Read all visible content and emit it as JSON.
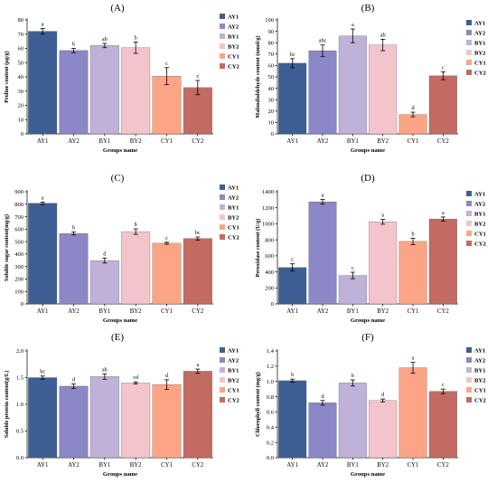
{
  "series_names": [
    "AY1",
    "AY2",
    "BY1",
    "BY2",
    "CY1",
    "CY2"
  ],
  "colors": [
    "#3e5f93",
    "#8c87c6",
    "#c0b1d8",
    "#f4c4cd",
    "#fca586",
    "#c36a63"
  ],
  "chart_data": [
    {
      "type": "bar",
      "title": "(A)",
      "ylabel": "Proline content (µg/g)",
      "xlabel": "Groups name",
      "categories": [
        "AY1",
        "AY2",
        "BY1",
        "BY2",
        "CY1",
        "CY2"
      ],
      "values": [
        72,
        58.5,
        62,
        60.5,
        40.5,
        32.5
      ],
      "errors": [
        2.0,
        1.5,
        1.5,
        4.0,
        6.0,
        5.0
      ],
      "letters": [
        "a",
        "b",
        "ab",
        "b",
        "c",
        "c"
      ],
      "ylim": [
        0,
        80
      ],
      "yticks": [
        "0",
        "10",
        "20",
        "30",
        "40",
        "50",
        "60",
        "70",
        "80"
      ],
      "legend": "right"
    },
    {
      "type": "bar",
      "title": "(B)",
      "ylabel": "Malondialdehyde content (nmol/g)",
      "xlabel": "Groups name",
      "categories": [
        "AY1",
        "AY2",
        "BY1",
        "BY2",
        "CY1",
        "CY2"
      ],
      "values": [
        62,
        73,
        86,
        78,
        17,
        51
      ],
      "errors": [
        4.0,
        5.0,
        6.0,
        5.0,
        2.0,
        3.5
      ],
      "letters": [
        "bc",
        "abc",
        "a",
        "ab",
        "d",
        "c"
      ],
      "ylim": [
        0,
        100
      ],
      "yticks": [
        "0",
        "10",
        "20",
        "30",
        "40",
        "50",
        "60",
        "70",
        "80",
        "90",
        "100"
      ],
      "legend": "right"
    },
    {
      "type": "bar",
      "title": "(C)",
      "ylabel": "Soluble sugar content(mg/g)",
      "xlabel": "Groups name",
      "categories": [
        "AY1",
        "AY2",
        "BY1",
        "BY2",
        "CY1",
        "CY2"
      ],
      "values": [
        808,
        565,
        348,
        580,
        487,
        525
      ],
      "errors": [
        10,
        12,
        20,
        22,
        8,
        12
      ],
      "letters": [
        "a",
        "b",
        "d",
        "b",
        "c",
        "bc"
      ],
      "ylim": [
        0,
        900
      ],
      "yticks": [
        "0",
        "100",
        "200",
        "300",
        "400",
        "500",
        "600",
        "700",
        "800",
        "900"
      ],
      "legend": "right"
    },
    {
      "type": "bar",
      "title": "(D)",
      "ylabel": "Peroxidase content (U/g)",
      "xlabel": "Groups name",
      "categories": [
        "AY1",
        "AY2",
        "BY1",
        "BY2",
        "CY1",
        "CY2"
      ],
      "values": [
        455,
        1275,
        355,
        1025,
        780,
        1060
      ],
      "errors": [
        45,
        30,
        40,
        30,
        40,
        25
      ],
      "letters": [
        "c",
        "a",
        "c",
        "a",
        "b",
        "a"
      ],
      "ylim": [
        0,
        1400
      ],
      "yticks": [
        "0",
        "200",
        "400",
        "600",
        "800",
        "1000",
        "1200",
        "1400"
      ],
      "legend": "right"
    },
    {
      "type": "bar",
      "title": "(E)",
      "ylabel": "Soluble protein content(g/L)",
      "xlabel": "Groups name",
      "categories": [
        "AY1",
        "AY2",
        "BY1",
        "BY2",
        "CY1",
        "CY2"
      ],
      "values": [
        1.5,
        1.34,
        1.52,
        1.4,
        1.37,
        1.62
      ],
      "errors": [
        0.03,
        0.04,
        0.05,
        0.02,
        0.09,
        0.04
      ],
      "letters": [
        "bc",
        "d",
        "ab",
        "cd",
        "d",
        "a"
      ],
      "ylim": [
        0,
        2
      ],
      "yticks": [
        "0.0",
        "0.5",
        "1.0",
        "1.5",
        "2.0"
      ],
      "legend": "right"
    },
    {
      "type": "bar",
      "title": "(F)",
      "ylabel": "Chlorophyll content (mg/g)",
      "xlabel": "Groups name",
      "categories": [
        "AY1",
        "AY2",
        "BY1",
        "BY2",
        "CY1",
        "CY2"
      ],
      "values": [
        1.01,
        0.72,
        0.98,
        0.75,
        1.18,
        0.87
      ],
      "errors": [
        0.02,
        0.03,
        0.04,
        0.02,
        0.07,
        0.03
      ],
      "letters": [
        "b",
        "d",
        "b",
        "d",
        "a",
        "c"
      ],
      "ylim": [
        0,
        1.4
      ],
      "yticks": [
        "0.0",
        "0.2",
        "0.4",
        "0.6",
        "0.8",
        "1.0",
        "1.2",
        "1.4"
      ],
      "legend": "right"
    }
  ]
}
